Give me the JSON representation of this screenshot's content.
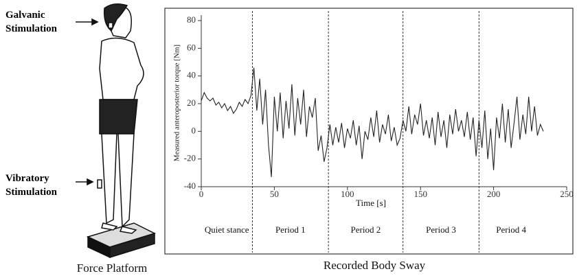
{
  "figure": {
    "galvanic_label": "Galvanic Stimulation",
    "vibratory_label": "Vibratory Stimulation",
    "platform_label": "Force Platform",
    "chart_title": "Recorded Body Sway"
  },
  "chart_data": {
    "type": "line",
    "x_label": "Time [s]",
    "y_label": "Measured anteroposterior torque [Nm]",
    "xlim": [
      0,
      250
    ],
    "ylim": [
      -40,
      80
    ],
    "xticks": [
      0,
      50,
      100,
      150,
      200,
      250
    ],
    "yticks": [
      -40,
      -20,
      0,
      20,
      40,
      60,
      80
    ],
    "period_boundaries": [
      35,
      87,
      138,
      190
    ],
    "period_labels": [
      "Quiet stance",
      "Period 1",
      "Period 2",
      "Period 3",
      "Period 4"
    ],
    "color": "#222222",
    "x": [
      0,
      2,
      4,
      6,
      8,
      10,
      12,
      14,
      16,
      18,
      20,
      22,
      24,
      26,
      28,
      30,
      32,
      34,
      36,
      38,
      40,
      42,
      44,
      46,
      48,
      50,
      52,
      54,
      56,
      58,
      60,
      62,
      64,
      66,
      68,
      70,
      72,
      74,
      76,
      78,
      80,
      82,
      84,
      86,
      88,
      90,
      92,
      94,
      96,
      98,
      100,
      102,
      104,
      106,
      108,
      110,
      112,
      114,
      116,
      118,
      120,
      122,
      124,
      126,
      128,
      130,
      132,
      134,
      136,
      138,
      140,
      142,
      144,
      146,
      148,
      150,
      152,
      154,
      156,
      158,
      160,
      162,
      164,
      166,
      168,
      170,
      172,
      174,
      176,
      178,
      180,
      182,
      184,
      186,
      188,
      190,
      192,
      194,
      196,
      198,
      200,
      202,
      204,
      206,
      208,
      210,
      212,
      214,
      216,
      218,
      220,
      222,
      224,
      226,
      228,
      230,
      232,
      234
    ],
    "values": [
      22,
      28,
      24,
      22,
      24,
      19,
      21,
      17,
      20,
      15,
      18,
      13,
      16,
      21,
      18,
      23,
      20,
      26,
      46,
      15,
      38,
      5,
      30,
      -10,
      -33,
      25,
      0,
      28,
      -5,
      22,
      2,
      34,
      -3,
      24,
      5,
      30,
      -4,
      18,
      10,
      24,
      -14,
      -3,
      -22,
      -12,
      5,
      -10,
      3,
      -8,
      6,
      -12,
      2,
      -5,
      8,
      -10,
      4,
      -20,
      0,
      -6,
      10,
      -4,
      15,
      -8,
      5,
      -2,
      12,
      -7,
      3,
      -10,
      -5,
      8,
      0,
      18,
      -2,
      12,
      5,
      20,
      -3,
      8,
      -5,
      10,
      -10,
      14,
      -4,
      8,
      -12,
      12,
      -2,
      16,
      0,
      8,
      -4,
      14,
      -6,
      10,
      -18,
      8,
      -12,
      15,
      -20,
      2,
      -28,
      10,
      -5,
      20,
      -8,
      16,
      -12,
      6,
      25,
      -6,
      12,
      -2,
      25,
      0,
      18,
      -3,
      5,
      0
    ]
  }
}
